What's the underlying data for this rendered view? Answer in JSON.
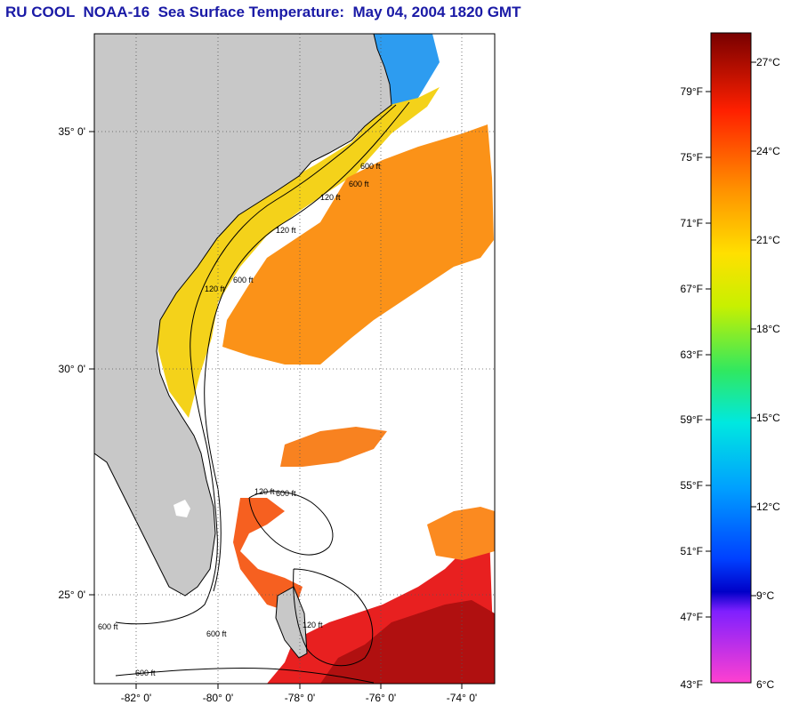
{
  "title": "RU COOL  NOAA-16  Sea Surface Temperature:  May 04, 2004 1820 GMT",
  "map": {
    "lat_labels": [
      "35° 0'",
      "30° 0'",
      "25° 0'"
    ],
    "lon_labels": [
      "-82° 0'",
      "-80° 0'",
      "-78° 0'",
      "-76° 0'",
      "-74° 0'"
    ],
    "contour_labels": [
      "600 ft",
      "120 ft",
      "600 ft",
      "120 ft",
      "600 ft",
      "120 ft",
      "600 ft",
      "120 ft",
      "600 ft",
      "600 ft",
      "120 ft",
      "600 ft"
    ],
    "colors": {
      "land": "#c8c8c8",
      "ocean_nodata": "#ffffff",
      "frame": "#000000"
    }
  },
  "colorbar": {
    "fahrenheit": [
      "79°F",
      "75°F",
      "71°F",
      "67°F",
      "63°F",
      "59°F",
      "55°F",
      "51°F",
      "47°F",
      "43°F"
    ],
    "celsius": [
      "27°C",
      "24°C",
      "21°C",
      "18°C",
      "15°C",
      "12°C",
      "9°C",
      "6°C"
    ]
  }
}
